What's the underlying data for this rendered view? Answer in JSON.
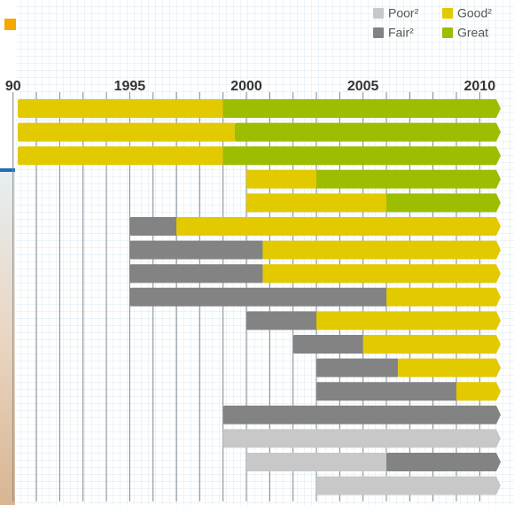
{
  "chart_data": {
    "type": "timeline",
    "xlim": [
      1990.2,
      2010.9
    ],
    "xticks": [
      {
        "value": 1990,
        "label": "90"
      },
      1995,
      2000,
      2005,
      2010
    ],
    "minor_xticks": [
      1991,
      1992,
      1993,
      1994,
      1996,
      1997,
      1998,
      1999,
      2001,
      2002,
      2003,
      2004,
      2006,
      2007,
      2008,
      2009
    ],
    "row_count": 17,
    "series": [
      {
        "name": "Poor²",
        "color": "#c8c8c8",
        "spans": [
          null,
          null,
          null,
          null,
          null,
          null,
          null,
          null,
          null,
          null,
          null,
          null,
          null,
          null,
          [
            1999,
            2010.9
          ],
          [
            2000,
            2006
          ],
          [
            2003,
            2010.9
          ]
        ]
      },
      {
        "name": "Fair²",
        "color": "#838383",
        "spans": [
          null,
          null,
          null,
          null,
          null,
          [
            1995,
            1997
          ],
          [
            1995,
            2000.7
          ],
          [
            1995,
            2000.7
          ],
          [
            1995,
            2006
          ],
          [
            2000,
            2003
          ],
          [
            2002,
            2005
          ],
          [
            2003,
            2006.5
          ],
          [
            2003,
            2009
          ],
          [
            1999,
            2010.9
          ],
          null,
          [
            2006,
            2010.9
          ],
          null
        ]
      },
      {
        "name": "Good²",
        "color": "#e2c900",
        "spans": [
          [
            1990.2,
            1999
          ],
          [
            1990.2,
            1999.5
          ],
          [
            1990.2,
            1999
          ],
          [
            2000,
            2003
          ],
          [
            2000,
            2006
          ],
          [
            1997,
            2010.9
          ],
          [
            2000.7,
            2010.9
          ],
          [
            2000.7,
            2010.9
          ],
          [
            2006,
            2010.9
          ],
          [
            2003,
            2010.9
          ],
          [
            2005,
            2010.9
          ],
          [
            2006.5,
            2010.9
          ],
          [
            2009,
            2010.9
          ],
          null,
          null,
          null,
          null
        ]
      },
      {
        "name": "Great",
        "color": "#9cbd00",
        "spans": [
          [
            1999,
            2010.9
          ],
          [
            1999.5,
            2010.9
          ],
          [
            1999,
            2010.9
          ],
          [
            2003,
            2010.9
          ],
          [
            2006,
            2010.9
          ],
          null,
          null,
          null,
          null,
          null,
          null,
          null,
          null,
          null,
          null,
          null,
          null
        ]
      }
    ]
  }
}
